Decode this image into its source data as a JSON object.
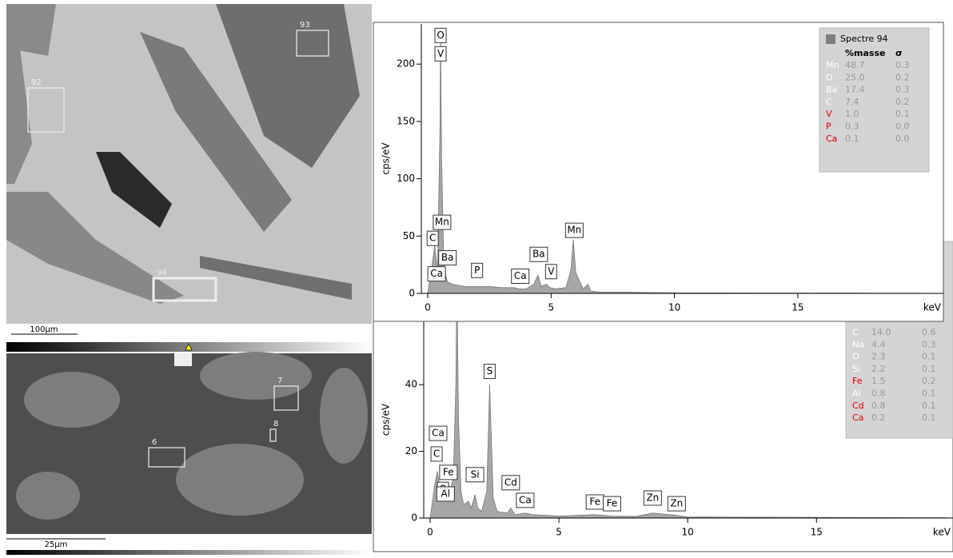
{
  "images": [
    {
      "regions": [
        {
          "label": "93"
        },
        {
          "label": "92"
        },
        {
          "label": "94"
        }
      ],
      "scale_bar": "100μm"
    },
    {
      "regions": [
        {
          "label": "7"
        },
        {
          "label": "8"
        },
        {
          "label": "6"
        }
      ],
      "scale_bar": "25μm"
    }
  ],
  "chart_data": [
    {
      "type": "area",
      "color": "#a6a6a6",
      "xlabel": "keV",
      "ylabel": "cps/eV",
      "xlim": [
        0,
        20.9
      ],
      "ylim": [
        0,
        235
      ],
      "xticks": [
        0,
        5,
        10,
        15
      ],
      "yticks": [
        0,
        50,
        100,
        150,
        200
      ],
      "x": [
        0,
        0.15,
        0.28,
        0.4,
        0.5,
        0.52,
        0.56,
        0.64,
        0.7,
        0.8,
        1.0,
        1.5,
        2.0,
        2.5,
        3.0,
        3.5,
        3.7,
        4.0,
        4.3,
        4.47,
        4.6,
        4.8,
        4.95,
        5.2,
        5.6,
        5.8,
        5.9,
        6.0,
        6.3,
        6.5,
        6.6,
        7,
        8,
        10,
        15,
        20
      ],
      "values": [
        0,
        20,
        42,
        20,
        150,
        231,
        120,
        38,
        18,
        10,
        8,
        6,
        6,
        6,
        5,
        5,
        4,
        4,
        8,
        16,
        6,
        8,
        5,
        4,
        5,
        20,
        47,
        18,
        4,
        8,
        2,
        1,
        1,
        0.5,
        0.3,
        0.2
      ],
      "annotations": [
        {
          "text": "O",
          "x": 0.52,
          "y": 225
        },
        {
          "text": "V",
          "x": 0.52,
          "y": 209
        },
        {
          "text": "Mn",
          "x": 0.58,
          "y": 62
        },
        {
          "text": "C",
          "x": 0.2,
          "y": 48
        },
        {
          "text": "Ba",
          "x": 0.8,
          "y": 31
        },
        {
          "text": "Ca",
          "x": 0.36,
          "y": 17
        },
        {
          "text": "P",
          "x": 2.0,
          "y": 20
        },
        {
          "text": "Ca",
          "x": 3.75,
          "y": 15
        },
        {
          "text": "Ba",
          "x": 4.5,
          "y": 34
        },
        {
          "text": "V",
          "x": 5.0,
          "y": 19
        },
        {
          "text": "Mn",
          "x": 5.94,
          "y": 55
        }
      ],
      "legend": {
        "title": "Spectre 94",
        "header": [
          "%masse",
          "σ"
        ],
        "rows": [
          {
            "element": "Mn",
            "mass": "48.7",
            "sigma": "0.3",
            "color": "#ffffff"
          },
          {
            "element": "O",
            "mass": "25.0",
            "sigma": "0.2",
            "color": "#ffffff"
          },
          {
            "element": "Ba",
            "mass": "17.4",
            "sigma": "0.3",
            "color": "#ffffff"
          },
          {
            "element": "C",
            "mass": "7.4",
            "sigma": "0.2",
            "color": "#ffffff"
          },
          {
            "element": "V",
            "mass": "1.0",
            "sigma": "0.1",
            "color": "#e00000"
          },
          {
            "element": "P",
            "mass": "0.3",
            "sigma": "0.0",
            "color": "#e00000"
          },
          {
            "element": "Ca",
            "mass": "0.1",
            "sigma": "0.0",
            "color": "#e00000"
          }
        ]
      }
    },
    {
      "type": "area",
      "color": "#a6a6a6",
      "xlabel": "keV",
      "ylabel": "cps/eV",
      "xlim": [
        0,
        20.3
      ],
      "ylim": [
        0,
        59
      ],
      "xticks": [
        0,
        5,
        10,
        15
      ],
      "yticks": [
        0,
        20,
        40
      ],
      "x": [
        0,
        0.18,
        0.28,
        0.4,
        0.52,
        0.6,
        0.7,
        0.8,
        0.9,
        1.0,
        1.04,
        1.1,
        1.2,
        1.3,
        1.49,
        1.6,
        1.74,
        1.85,
        2.0,
        2.2,
        2.31,
        2.45,
        2.6,
        3.0,
        3.13,
        3.3,
        3.69,
        4,
        5,
        6.4,
        7.06,
        8.0,
        8.64,
        9.57,
        10,
        15,
        20
      ],
      "values": [
        0,
        10,
        14,
        8,
        6,
        7,
        10,
        9,
        12,
        40,
        75,
        30,
        8,
        4,
        5,
        3,
        7,
        3,
        2,
        8,
        40,
        6,
        2,
        1.5,
        3,
        1,
        1.5,
        1,
        0.6,
        1,
        0.6,
        0.5,
        1.5,
        0.8,
        0.3,
        0.2,
        0.1
      ],
      "annotations": [
        {
          "text": "Ca",
          "x": 0.31,
          "y": 25.4
        },
        {
          "text": "C",
          "x": 0.25,
          "y": 19.2
        },
        {
          "text": "Fe",
          "x": 0.71,
          "y": 13.7
        },
        {
          "text": "Si",
          "x": 1.74,
          "y": 13
        },
        {
          "text": "O",
          "x": 0.5,
          "y": 8.6
        },
        {
          "text": "Al",
          "x": 0.6,
          "y": 7.2
        },
        {
          "text": "Cd",
          "x": 3.13,
          "y": 10.6
        },
        {
          "text": "Ca",
          "x": 3.69,
          "y": 5.3
        },
        {
          "text": "Fe",
          "x": 6.4,
          "y": 4.8
        },
        {
          "text": "Fe",
          "x": 7.06,
          "y": 4.3
        },
        {
          "text": "Zn",
          "x": 8.64,
          "y": 6
        },
        {
          "text": "Zn",
          "x": 9.57,
          "y": 4.3
        },
        {
          "text": "S",
          "x": 2.31,
          "y": 44
        }
      ],
      "legend": {
        "rows": [
          {
            "element": "C",
            "mass": "14.0",
            "sigma": "0.6",
            "color": "#ffffff"
          },
          {
            "element": "Na",
            "mass": "4.4",
            "sigma": "0.3",
            "color": "#ffffff"
          },
          {
            "element": "O",
            "mass": "2.3",
            "sigma": "0.1",
            "color": "#ffffff"
          },
          {
            "element": "Si",
            "mass": "2.2",
            "sigma": "0.1",
            "color": "#ffffff"
          },
          {
            "element": "Fe",
            "mass": "1.5",
            "sigma": "0.2",
            "color": "#e00000"
          },
          {
            "element": "Al",
            "mass": "0.8",
            "sigma": "0.1",
            "color": "#ffffff"
          },
          {
            "element": "Cd",
            "mass": "0.8",
            "sigma": "0.1",
            "color": "#e00000"
          },
          {
            "element": "Ca",
            "mass": "0.2",
            "sigma": "0.1",
            "color": "#e00000"
          }
        ]
      }
    }
  ]
}
